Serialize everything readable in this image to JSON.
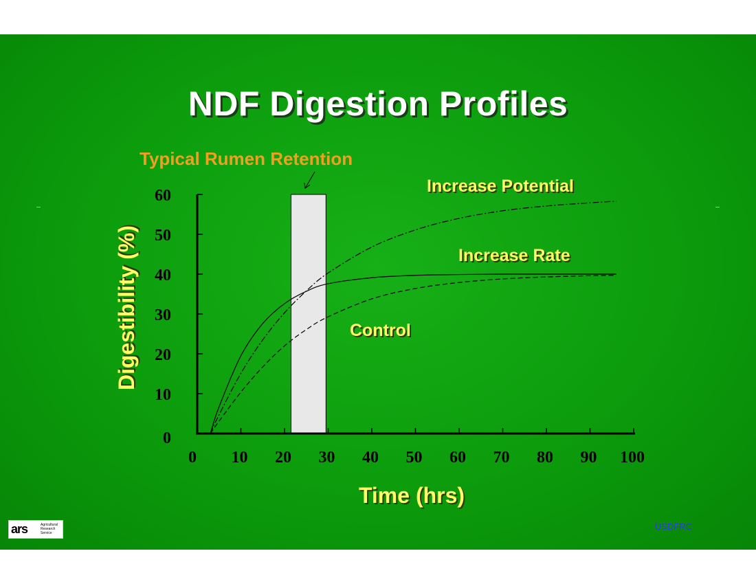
{
  "slide": {
    "title": "NDF Digestion Profiles",
    "credit": "USDFRC",
    "logo": {
      "mark": "ars",
      "text": "Agricultural\nResearch\nService"
    }
  },
  "chart_data": {
    "type": "line",
    "title": "NDF Digestion Profiles",
    "xlabel": "Time (hrs)",
    "ylabel": "Digestibility (%)",
    "xlim": [
      0,
      100
    ],
    "ylim": [
      0,
      60
    ],
    "xticks": [
      "0",
      "10",
      "20",
      "30",
      "40",
      "50",
      "60",
      "70",
      "80",
      "90",
      "100"
    ],
    "yticks": [
      "0",
      "10",
      "20",
      "30",
      "40",
      "50",
      "60"
    ],
    "grid": false,
    "series": [
      {
        "name": "Increase Potential",
        "style": "dash-dot",
        "x": [
          3,
          5,
          10,
          15,
          20,
          25,
          30,
          40,
          50,
          60,
          70,
          80,
          90,
          96
        ],
        "y": [
          0,
          4.7,
          15.1,
          23.5,
          30.3,
          35.8,
          40.3,
          46.8,
          51.1,
          54.0,
          55.9,
          57.1,
          57.9,
          58.3
        ]
      },
      {
        "name": "Increase Rate",
        "style": "solid",
        "x": [
          3,
          5,
          10,
          15,
          20,
          25,
          30,
          40,
          50,
          60,
          70,
          80,
          90,
          96
        ],
        "y": [
          0,
          6.7,
          19.5,
          27.6,
          32.6,
          35.7,
          37.6,
          39.1,
          39.7,
          39.9,
          40.0,
          40.0,
          40.0,
          40.0
        ]
      },
      {
        "name": "Control",
        "style": "dashed",
        "x": [
          3,
          5,
          10,
          15,
          20,
          25,
          30,
          40,
          50,
          60,
          70,
          80,
          90,
          96
        ],
        "y": [
          0,
          3.1,
          10.4,
          16.7,
          22.0,
          26.1,
          29.3,
          33.8,
          36.4,
          37.9,
          38.8,
          39.3,
          39.6,
          39.7
        ]
      }
    ],
    "highlight_band": {
      "label": "Typical Rumen Retention",
      "x_start": 21.5,
      "x_end": 29.5,
      "y_top": 60,
      "color": "#e8e8e8"
    },
    "annotations": [
      "Typical Rumen Retention",
      "Increase Potential",
      "Increase Rate",
      "Control"
    ],
    "colors": {
      "axis": "#000000",
      "curves": "#000000",
      "label_yellow": "#ffff66",
      "label_orange": "#f0a020",
      "background": "#0c9c0c"
    }
  }
}
